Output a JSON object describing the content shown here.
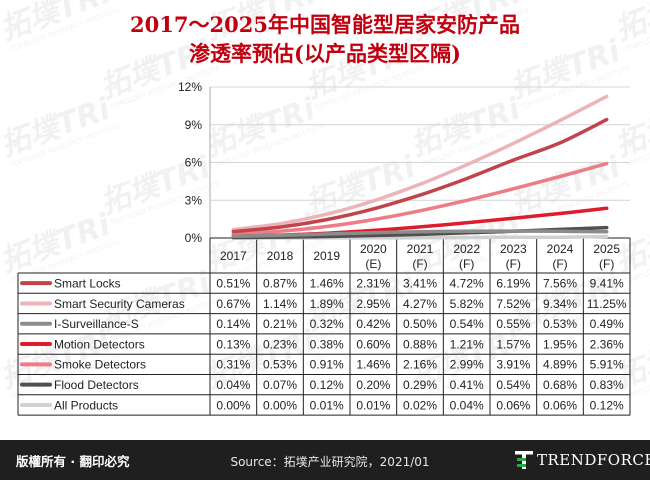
{
  "title": {
    "line1": "2017～2025年中国智能型居家安防产品",
    "line2": "渗透率预估(以产品类型区隔)"
  },
  "watermark": {
    "logo_text": "拓墣TRi",
    "sub_text": "TOPOLOGY RESEARCH INSTITUTE"
  },
  "footer": {
    "copyright": "版權所有 · 翻印必究",
    "source": "Source：拓墣产业研究院，2021/01",
    "brand": "TRENDFORCE"
  },
  "colors": {
    "title": "#c0000f",
    "footer_bg": "#1f1f1f",
    "grid": "#d4d4d4",
    "table_border": "#222222"
  },
  "chart_data": {
    "type": "line",
    "categories": [
      "2017",
      "2018",
      "2019",
      "2020\n(E)",
      "2021\n(F)",
      "2022\n(F)",
      "2023\n(F)",
      "2024\n(F)",
      "2025\n(F)"
    ],
    "ylim": [
      0,
      12
    ],
    "yticks": [
      "0%",
      "3%",
      "6%",
      "9%",
      "12%"
    ],
    "ytick_values": [
      0,
      3,
      6,
      9,
      12
    ],
    "grid": "horizontal",
    "legend": "data table below chart",
    "series": [
      {
        "name": "Smart Locks",
        "color": "#c0444a",
        "values": [
          0.51,
          0.87,
          1.46,
          2.31,
          3.41,
          4.72,
          6.19,
          7.56,
          9.41
        ],
        "labels": [
          "0.51%",
          "0.87%",
          "1.46%",
          "2.31%",
          "3.41%",
          "4.72%",
          "6.19%",
          "7.56%",
          "9.41%"
        ]
      },
      {
        "name": "Smart Security Cameras",
        "color": "#ebb4b8",
        "values": [
          0.67,
          1.14,
          1.89,
          2.95,
          4.27,
          5.82,
          7.52,
          9.34,
          11.25
        ],
        "labels": [
          "0.67%",
          "1.14%",
          "1.89%",
          "2.95%",
          "4.27%",
          "5.82%",
          "7.52%",
          "9.34%",
          "11.25%"
        ]
      },
      {
        "name": "I-Surveillance-S",
        "color": "#8c8c8c",
        "values": [
          0.14,
          0.21,
          0.32,
          0.42,
          0.5,
          0.54,
          0.55,
          0.53,
          0.49
        ],
        "labels": [
          "0.14%",
          "0.21%",
          "0.32%",
          "0.42%",
          "0.50%",
          "0.54%",
          "0.55%",
          "0.53%",
          "0.49%"
        ]
      },
      {
        "name": "Motion Detectors",
        "color": "#dd1c2c",
        "values": [
          0.13,
          0.23,
          0.38,
          0.6,
          0.88,
          1.21,
          1.57,
          1.95,
          2.36
        ],
        "labels": [
          "0.13%",
          "0.23%",
          "0.38%",
          "0.60%",
          "0.88%",
          "1.21%",
          "1.57%",
          "1.95%",
          "2.36%"
        ]
      },
      {
        "name": "Smoke Detectors",
        "color": "#ef7b86",
        "values": [
          0.31,
          0.53,
          0.91,
          1.46,
          2.16,
          2.99,
          3.91,
          4.89,
          5.91
        ],
        "labels": [
          "0.31%",
          "0.53%",
          "0.91%",
          "1.46%",
          "2.16%",
          "2.99%",
          "3.91%",
          "4.89%",
          "5.91%"
        ]
      },
      {
        "name": "Flood Detectors",
        "color": "#505050",
        "values": [
          0.04,
          0.07,
          0.12,
          0.2,
          0.29,
          0.41,
          0.54,
          0.68,
          0.83
        ],
        "labels": [
          "0.04%",
          "0.07%",
          "0.12%",
          "0.20%",
          "0.29%",
          "0.41%",
          "0.54%",
          "0.68%",
          "0.83%"
        ]
      },
      {
        "name": "All Products",
        "color": "#d0d0d0",
        "values": [
          0.0,
          0.0,
          0.01,
          0.01,
          0.02,
          0.04,
          0.06,
          0.06,
          0.12
        ],
        "labels": [
          "0.00%",
          "0.00%",
          "0.01%",
          "0.01%",
          "0.02%",
          "0.04%",
          "0.06%",
          "0.06%",
          "0.12%"
        ]
      }
    ]
  }
}
